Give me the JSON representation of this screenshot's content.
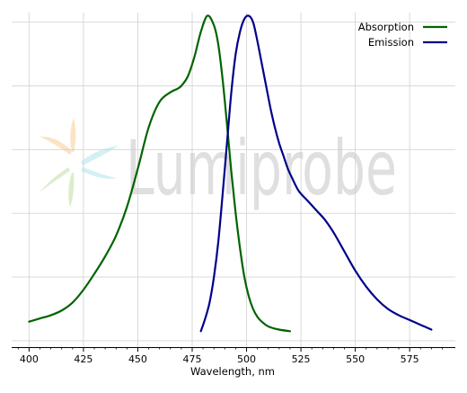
{
  "chart_data": {
    "type": "line",
    "xlabel": "Wavelength, nm",
    "ylabel": "",
    "xlim": [
      392,
      596
    ],
    "ylim": [
      -0.02,
      1.03
    ],
    "xticks": [
      400,
      425,
      450,
      475,
      500,
      525,
      550,
      575
    ],
    "grid": true,
    "legend_position": "top-right",
    "watermark": "Lumiprobe",
    "series": [
      {
        "name": "Absorption",
        "color": "#006400",
        "x": [
          400,
          405,
          410,
          415,
          420,
          425,
          430,
          435,
          440,
          445,
          450,
          455,
          460,
          465,
          468,
          470,
          473,
          476,
          479,
          482,
          485,
          487,
          489,
          491,
          493,
          495,
          497,
          499,
          501,
          503,
          505,
          507,
          510,
          515,
          520
        ],
        "y": [
          0.06,
          0.07,
          0.08,
          0.095,
          0.12,
          0.16,
          0.21,
          0.265,
          0.33,
          0.42,
          0.54,
          0.67,
          0.75,
          0.78,
          0.79,
          0.8,
          0.83,
          0.89,
          0.97,
          1.02,
          0.99,
          0.93,
          0.82,
          0.68,
          0.53,
          0.4,
          0.29,
          0.2,
          0.14,
          0.1,
          0.075,
          0.06,
          0.045,
          0.035,
          0.03
        ]
      },
      {
        "name": "Emission",
        "color": "#00008B",
        "x": [
          479,
          481,
          483,
          485,
          487,
          489,
          491,
          493,
          495,
          497,
          499,
          501,
          503,
          505,
          507,
          509,
          511,
          513,
          515,
          517,
          519,
          521,
          524,
          528,
          532,
          536,
          540,
          545,
          550,
          555,
          560,
          565,
          570,
          575,
          580,
          585
        ],
        "y": [
          0.03,
          0.07,
          0.12,
          0.2,
          0.31,
          0.46,
          0.62,
          0.78,
          0.9,
          0.97,
          1.01,
          1.02,
          1.0,
          0.94,
          0.87,
          0.8,
          0.73,
          0.67,
          0.62,
          0.58,
          0.54,
          0.51,
          0.47,
          0.44,
          0.41,
          0.38,
          0.34,
          0.28,
          0.22,
          0.17,
          0.13,
          0.1,
          0.08,
          0.065,
          0.05,
          0.035
        ]
      }
    ]
  }
}
